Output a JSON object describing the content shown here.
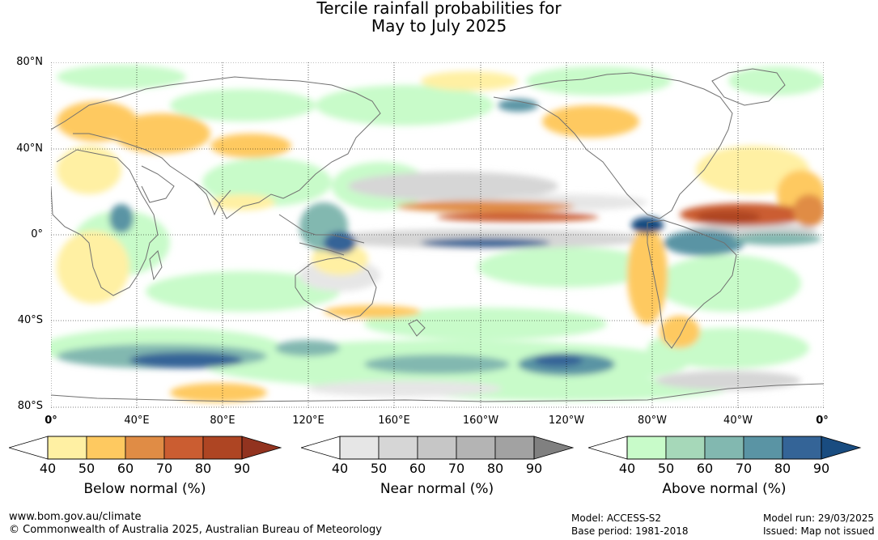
{
  "title_line1": "Tercile rainfall probabilities for",
  "title_line2": "May to July 2025",
  "lat_labels": [
    "80°N",
    "40°N",
    "0°",
    "40°S",
    "80°S"
  ],
  "lon_labels": [
    "0°",
    "40°E",
    "80°E",
    "120°E",
    "160°E",
    "160°W",
    "120°W",
    "80°W",
    "40°W",
    "0°"
  ],
  "legends": [
    {
      "title": "Below normal (%)",
      "ticks": [
        "40",
        "50",
        "60",
        "70",
        "80",
        "90"
      ],
      "colors": [
        "#fff0a3",
        "#fec960",
        "#e08c45",
        "#cb5d31",
        "#ae4523",
        "#92331f"
      ]
    },
    {
      "title": "Near normal (%)",
      "ticks": [
        "40",
        "50",
        "60",
        "70",
        "80",
        "90"
      ],
      "colors": [
        "#e6e6e6",
        "#d6d6d6",
        "#c6c6c6",
        "#b4b4b4",
        "#a2a2a2",
        "#808080"
      ]
    },
    {
      "title": "Above normal (%)",
      "ticks": [
        "40",
        "50",
        "60",
        "70",
        "80",
        "90"
      ],
      "colors": [
        "#c8fbc9",
        "#a6d8b9",
        "#82b8b0",
        "#5a94a4",
        "#346497",
        "#194c80"
      ]
    }
  ],
  "footer": {
    "website": "www.bom.gov.au/climate",
    "copyright": "© Commonwealth of Australia 2025, Australian Bureau of Meteorology",
    "model": "Model: ACCESS-S2",
    "base_period": "Base period: 1981-2018",
    "model_run": "Model run: 29/03/2025",
    "issued": "Issued: Map not issued"
  }
}
